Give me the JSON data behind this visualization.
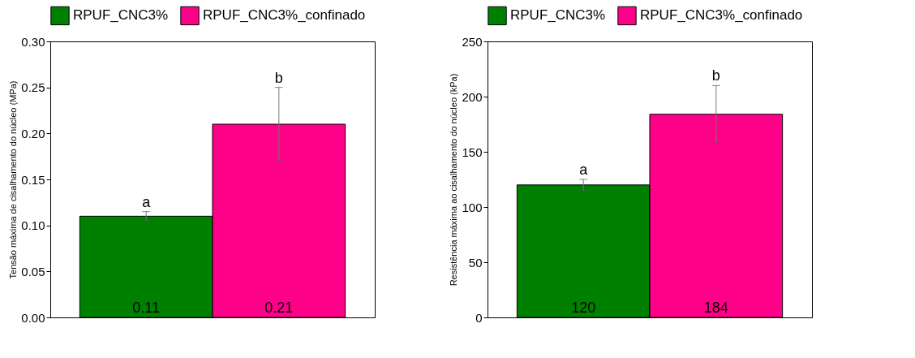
{
  "chart_data": [
    {
      "type": "bar",
      "ylabel": "Tensão máxima de cisalhamento do núcleo (MPa)",
      "categories": [
        null
      ],
      "ylim": [
        0,
        0.3
      ],
      "yticks": [
        {
          "value": 0,
          "label": "0.00"
        },
        0.05,
        {
          "value": 0.1,
          "label": "0.10"
        },
        0.15,
        {
          "value": 0.2,
          "label": "0.20"
        },
        0.25,
        {
          "value": 0.3,
          "label": "0.30"
        }
      ],
      "grid": false,
      "legend": "top",
      "tick_labels": "y",
      "data_labels": true,
      "series": [
        {
          "name": "RPUF_CNC3%",
          "color": "#008000",
          "values": [
            0.11
          ],
          "errors": [
            0.005
          ]
        },
        {
          "name": "RPUF_CNC3%_confinado",
          "color": "#ff0088",
          "values": [
            0.21
          ],
          "errors": [
            0.04
          ]
        }
      ],
      "annotations": [
        {
          "text": "a",
          "y": 0.115
        },
        {
          "text": "b",
          "y": 0.25
        }
      ]
    },
    {
      "type": "bar",
      "ylabel": "Resistência máxima ao cisalhamento do núcleo (kPa)",
      "categories": [
        null
      ],
      "ylim": [
        0,
        250
      ],
      "yticks": [
        0,
        50,
        100,
        150,
        200,
        250
      ],
      "grid": false,
      "legend": "top",
      "tick_labels": "y",
      "data_labels": true,
      "series": [
        {
          "name": "RPUF_CNC3%",
          "color": "#008000",
          "values": [
            120
          ],
          "errors": [
            5
          ]
        },
        {
          "name": "RPUF_CNC3%_confinado",
          "color": "#ff0088",
          "values": [
            184
          ],
          "errors": [
            26
          ]
        }
      ],
      "annotations": [
        {
          "text": "a",
          "y": 125
        },
        {
          "text": "b",
          "y": 210
        }
      ]
    }
  ]
}
